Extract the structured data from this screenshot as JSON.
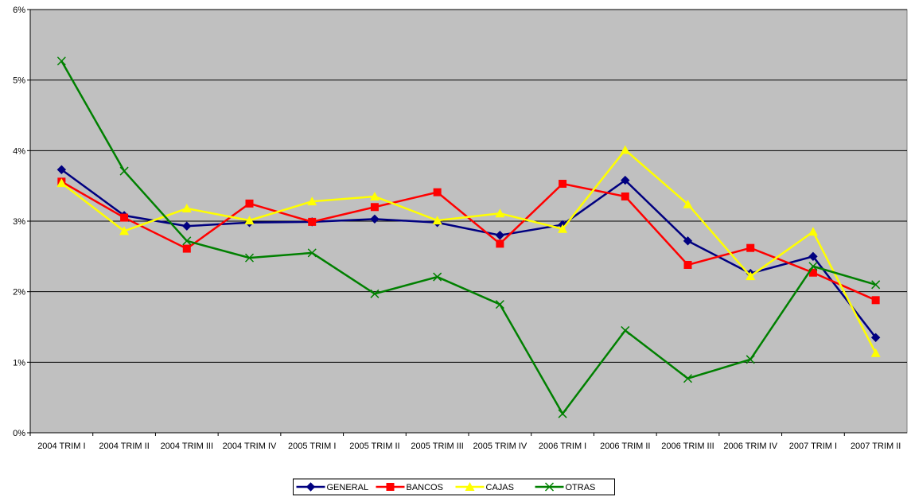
{
  "chart_data": {
    "type": "line",
    "categories": [
      "2004 TRIM I",
      "2004 TRIM II",
      "2004 TRIM III",
      "2004 TRIM IV",
      "2005 TRIM I",
      "2005 TRIM II",
      "2005 TRIM III",
      "2005 TRIM IV",
      "2006 TRIM I",
      "2006 TRIM II",
      "2006 TRIM III",
      "2006 TRIM IV",
      "2007 TRIM I",
      "2007 TRIM II"
    ],
    "series": [
      {
        "name": "GENERAL",
        "color": "#000080",
        "values": [
          3.73,
          3.08,
          2.93,
          2.98,
          2.99,
          3.03,
          2.98,
          2.8,
          2.95,
          3.58,
          2.72,
          2.26,
          2.5,
          1.35
        ]
      },
      {
        "name": "BANCOS",
        "color": "#ff0000",
        "values": [
          3.56,
          3.05,
          2.61,
          3.25,
          2.99,
          3.2,
          3.41,
          2.68,
          3.53,
          3.35,
          2.38,
          2.62,
          2.27,
          1.88
        ]
      },
      {
        "name": "CAJAS",
        "color": "#ffff00",
        "values": [
          3.54,
          2.86,
          3.18,
          3.01,
          3.28,
          3.35,
          3.01,
          3.11,
          2.89,
          4.01,
          3.24,
          2.22,
          2.85,
          1.13
        ]
      },
      {
        "name": "OTRAS",
        "color": "#008000",
        "values": [
          5.27,
          3.71,
          2.72,
          2.48,
          2.55,
          1.97,
          2.21,
          1.82,
          0.27,
          1.45,
          0.77,
          1.04,
          2.36,
          2.1
        ]
      }
    ],
    "ylim": [
      0,
      6
    ],
    "yticks": [
      {
        "value": 0,
        "label": "0%"
      },
      {
        "value": 1,
        "label": "1%"
      },
      {
        "value": 2,
        "label": "2%"
      },
      {
        "value": 3,
        "label": "3%"
      },
      {
        "value": 4,
        "label": "4%"
      },
      {
        "value": 5,
        "label": "5%"
      },
      {
        "value": 6,
        "label": "6%"
      }
    ],
    "grid": true,
    "plot_background": "#c0c0c0",
    "legend": "bottom"
  }
}
